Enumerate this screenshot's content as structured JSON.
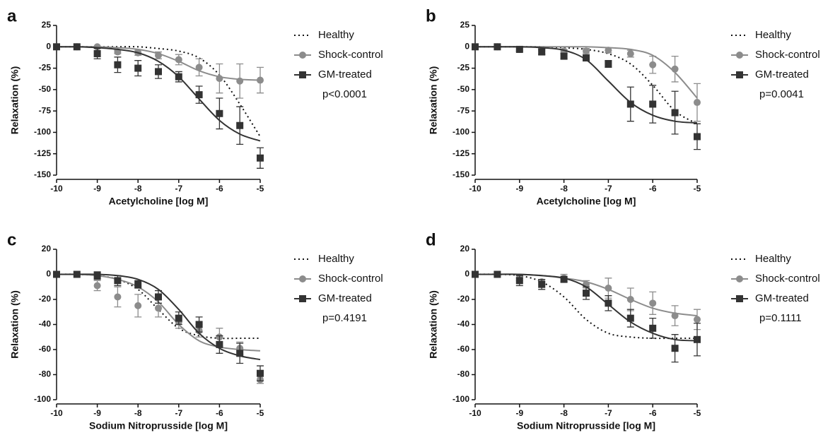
{
  "chart_data": [
    {
      "type": "dose-response",
      "label": "a",
      "x_label": "Acetylcholine [log M]",
      "y_label": "Relaxation (%)",
      "annotation": "p<0.0001",
      "x": [
        -10,
        -9.5,
        -9,
        -8.5,
        -8,
        -7.5,
        -7,
        -6.5,
        -6,
        -5.5,
        -5
      ],
      "xlim": [
        -10,
        -5
      ],
      "xticks": [
        -10,
        -9,
        -8,
        -7,
        -6,
        -5
      ],
      "ylim": [
        -150,
        25
      ],
      "yticks": [
        25,
        0,
        -25,
        -50,
        -75,
        -100,
        -125,
        -150
      ],
      "series": [
        {
          "name": "Healthy",
          "color": "#111111",
          "line": "dotted",
          "fit": [
            0,
            0,
            0,
            0,
            0,
            -2,
            -5,
            -13,
            -33,
            -67,
            -105
          ]
        },
        {
          "name": "Shock-control",
          "color": "#8c8c8c",
          "line": "solid",
          "marker": "circle",
          "values": [
            0,
            0,
            0,
            -6,
            -7,
            -10,
            -15,
            -24,
            -37,
            -40,
            -39
          ],
          "errors": [
            0,
            0,
            0,
            2,
            3,
            4,
            6,
            10,
            17,
            20,
            15
          ],
          "fit": [
            0,
            0,
            0,
            -1,
            -3,
            -8,
            -17,
            -28,
            -35,
            -38,
            -39
          ]
        },
        {
          "name": "GM-treated",
          "color": "#333333",
          "line": "solid",
          "marker": "square",
          "values": [
            0,
            0,
            -8,
            -21,
            -25,
            -29,
            -35,
            -56,
            -78,
            -92,
            -130
          ],
          "errors": [
            0,
            0,
            6,
            9,
            9,
            8,
            6,
            10,
            18,
            22,
            12
          ],
          "fit": [
            0,
            0,
            -1,
            -3,
            -7,
            -17,
            -35,
            -61,
            -86,
            -102,
            -110
          ]
        }
      ]
    },
    {
      "type": "dose-response",
      "label": "b",
      "x_label": "Acetylcholine [log M]",
      "y_label": "Relaxation (%)",
      "annotation": "p=0.0041",
      "x": [
        -10,
        -9.5,
        -9,
        -8.5,
        -8,
        -7.5,
        -7,
        -6.5,
        -6,
        -5.5,
        -5
      ],
      "xlim": [
        -10,
        -5
      ],
      "xticks": [
        -10,
        -9,
        -8,
        -7,
        -6,
        -5
      ],
      "ylim": [
        -150,
        25
      ],
      "yticks": [
        25,
        0,
        -25,
        -50,
        -75,
        -100,
        -125,
        -150
      ],
      "series": [
        {
          "name": "Healthy",
          "color": "#111111",
          "line": "dotted",
          "fit": [
            0,
            0,
            0,
            0,
            -1,
            -3,
            -8,
            -20,
            -45,
            -75,
            -90
          ]
        },
        {
          "name": "Shock-control",
          "color": "#8c8c8c",
          "line": "solid",
          "marker": "circle",
          "values": [
            0,
            0,
            -3,
            -5,
            -5,
            -5,
            -4,
            -8,
            -21,
            -26,
            -65
          ],
          "errors": [
            0,
            0,
            2,
            3,
            2,
            3,
            3,
            4,
            10,
            15,
            22
          ],
          "fit": [
            0,
            0,
            0,
            0,
            0,
            0,
            -1,
            -3,
            -10,
            -30,
            -60
          ]
        },
        {
          "name": "GM-treated",
          "color": "#333333",
          "line": "solid",
          "marker": "square",
          "values": [
            0,
            0,
            -3,
            -6,
            -11,
            -13,
            -20,
            -67,
            -67,
            -77,
            -105
          ],
          "errors": [
            0,
            0,
            2,
            3,
            3,
            3,
            4,
            20,
            22,
            25,
            15
          ],
          "fit": [
            0,
            0,
            0,
            -1,
            -4,
            -15,
            -40,
            -65,
            -80,
            -87,
            -89
          ]
        }
      ]
    },
    {
      "type": "dose-response",
      "label": "c",
      "x_label": "Sodium Nitroprusside [log M]",
      "y_label": "Relaxation (%)",
      "annotation": "p=0.4191",
      "x": [
        -10,
        -9.5,
        -9,
        -8.5,
        -8,
        -7.5,
        -7,
        -6.5,
        -6,
        -5.5,
        -5
      ],
      "xlim": [
        -10,
        -5
      ],
      "xticks": [
        -10,
        -9,
        -8,
        -7,
        -6,
        -5
      ],
      "ylim": [
        -100,
        20
      ],
      "yticks": [
        20,
        0,
        -20,
        -40,
        -60,
        -80,
        -100
      ],
      "series": [
        {
          "name": "Healthy",
          "color": "#111111",
          "line": "dotted",
          "fit": [
            0,
            0,
            -1,
            -4,
            -12,
            -28,
            -43,
            -49,
            -51,
            -51,
            -51
          ]
        },
        {
          "name": "Shock-control",
          "color": "#8c8c8c",
          "line": "solid",
          "marker": "circle",
          "values": [
            0,
            0,
            -9,
            -18,
            -25,
            -27,
            -38,
            -45,
            -50,
            -59,
            -84
          ],
          "errors": [
            0,
            0,
            4,
            8,
            9,
            7,
            5,
            5,
            7,
            5,
            3
          ],
          "fit": [
            0,
            0,
            -1,
            -4,
            -10,
            -22,
            -40,
            -53,
            -58,
            -60,
            -61
          ]
        },
        {
          "name": "GM-treated",
          "color": "#333333",
          "line": "solid",
          "marker": "square",
          "values": [
            0,
            0,
            -1,
            -5,
            -8,
            -18,
            -35,
            -40,
            -56,
            -63,
            -79
          ],
          "errors": [
            0,
            0,
            3,
            4,
            3,
            5,
            5,
            6,
            7,
            8,
            6
          ],
          "fit": [
            0,
            0,
            0,
            -1,
            -4,
            -12,
            -28,
            -47,
            -59,
            -65,
            -68
          ]
        }
      ]
    },
    {
      "type": "dose-response",
      "label": "d",
      "x_label": "Sodium Nitroprusside [log M]",
      "y_label": "Relaxation (%)",
      "annotation": "p=0.1111",
      "x": [
        -10,
        -9.5,
        -9,
        -8.5,
        -8,
        -7.5,
        -7,
        -6.5,
        -6,
        -5.5,
        -5
      ],
      "xlim": [
        -10,
        -5
      ],
      "xticks": [
        -10,
        -9,
        -8,
        -7,
        -6,
        -5
      ],
      "ylim": [
        -100,
        20
      ],
      "yticks": [
        20,
        0,
        -20,
        -40,
        -60,
        -80,
        -100
      ],
      "series": [
        {
          "name": "Healthy",
          "color": "#111111",
          "line": "dotted",
          "fit": [
            0,
            0,
            -1,
            -6,
            -18,
            -36,
            -47,
            -50,
            -51,
            -51,
            -51
          ]
        },
        {
          "name": "Shock-control",
          "color": "#8c8c8c",
          "line": "solid",
          "marker": "circle",
          "values": [
            0,
            0,
            -3,
            -6,
            -3,
            -8,
            -11,
            -20,
            -23,
            -33,
            -36
          ],
          "errors": [
            0,
            0,
            2,
            2,
            3,
            3,
            8,
            9,
            9,
            8,
            8
          ],
          "fit": [
            0,
            0,
            0,
            -1,
            -3,
            -6,
            -12,
            -20,
            -27,
            -31,
            -33
          ]
        },
        {
          "name": "GM-treated",
          "color": "#333333",
          "line": "solid",
          "marker": "square",
          "values": [
            0,
            0,
            -5,
            -8,
            -4,
            -15,
            -23,
            -35,
            -43,
            -59,
            -52
          ],
          "errors": [
            0,
            0,
            4,
            4,
            2,
            5,
            6,
            7,
            8,
            11,
            13
          ],
          "fit": [
            0,
            0,
            0,
            -1,
            -3,
            -10,
            -24,
            -38,
            -47,
            -52,
            -53
          ]
        }
      ]
    }
  ]
}
